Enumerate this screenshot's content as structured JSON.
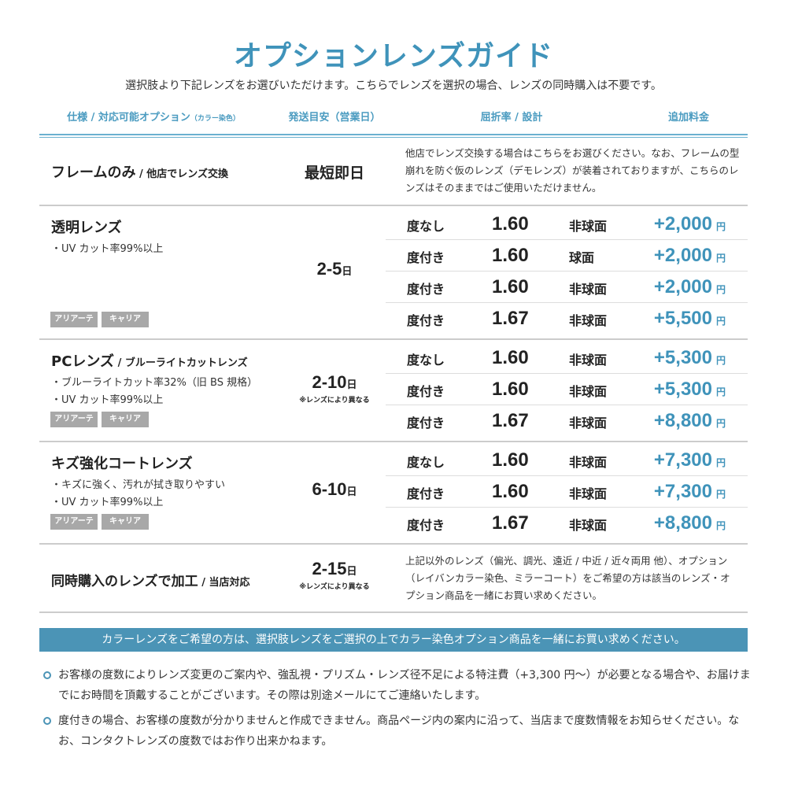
{
  "title": "オプションレンズガイド",
  "subtitle": "選択肢より下記レンズをお選びいただけます。こちらでレンズを選択の場合、レンズの同時購入は不要です。",
  "headers": {
    "spec": "仕様 / 対応可能オプション",
    "spec_small": "（カラー染色）",
    "shipping": "発送目安（営業日）",
    "index": "屈折率 / 設計",
    "price": "追加料金"
  },
  "frame_only": {
    "name": "フレームのみ",
    "sub": " / 他店でレンズ交換",
    "shipping": "最短即日",
    "desc": "他店でレンズ交換する場合はこちらをお選びください。なお、フレームの型崩れを防ぐ仮のレンズ（デモレンズ）が装着されておりますが、こちらのレンズはそのままではご使用いただけません。"
  },
  "sections": [
    {
      "name": "透明レンズ",
      "sub": "",
      "bullets": [
        "・UV カット率99%以上"
      ],
      "tags": [
        "アリアーテ",
        "キャリア"
      ],
      "days": "2-5",
      "unit": "日",
      "note": "",
      "rows": [
        {
          "type": "度なし",
          "index": "1.60",
          "design": "非球面",
          "price": "+2,000",
          "yen": "円"
        },
        {
          "type": "度付き",
          "index": "1.60",
          "design": "球面",
          "price": "+2,000",
          "yen": "円"
        },
        {
          "type": "度付き",
          "index": "1.60",
          "design": "非球面",
          "price": "+2,000",
          "yen": "円"
        },
        {
          "type": "度付き",
          "index": "1.67",
          "design": "非球面",
          "price": "+5,500",
          "yen": "円"
        }
      ]
    },
    {
      "name": "PCレンズ",
      "sub": " / ブルーライトカットレンズ",
      "bullets": [
        "・ブルーライトカット率32%（旧 BS 規格）",
        "・UV カット率99%以上"
      ],
      "tags": [
        "アリアーテ",
        "キャリア"
      ],
      "days": "2-10",
      "unit": "日",
      "note": "※レンズにより異なる",
      "rows": [
        {
          "type": "度なし",
          "index": "1.60",
          "design": "非球面",
          "price": "+5,300",
          "yen": "円"
        },
        {
          "type": "度付き",
          "index": "1.60",
          "design": "非球面",
          "price": "+5,300",
          "yen": "円"
        },
        {
          "type": "度付き",
          "index": "1.67",
          "design": "非球面",
          "price": "+8,800",
          "yen": "円"
        }
      ]
    },
    {
      "name": "キズ強化コートレンズ",
      "sub": "",
      "bullets": [
        "・キズに強く、汚れが拭き取りやすい",
        "・UV カット率99%以上"
      ],
      "tags": [
        "アリアーテ",
        "キャリア"
      ],
      "days": "6-10",
      "unit": "日",
      "note": "",
      "rows": [
        {
          "type": "度なし",
          "index": "1.60",
          "design": "非球面",
          "price": "+7,300",
          "yen": "円"
        },
        {
          "type": "度付き",
          "index": "1.60",
          "design": "非球面",
          "price": "+7,300",
          "yen": "円"
        },
        {
          "type": "度付き",
          "index": "1.67",
          "design": "非球面",
          "price": "+8,800",
          "yen": "円"
        }
      ]
    }
  ],
  "same_time": {
    "name": "同時購入のレンズで加工",
    "sub": " / 当店対応",
    "days": "2-15",
    "unit": "日",
    "note": "※レンズにより異なる",
    "desc": "上記以外のレンズ（偏光、調光、遠近 / 中近 / 近々両用 他）、オプション（レイバンカラー染色、ミラーコート）をご希望の方は該当のレンズ・オプション商品を一緒にお買い求めください。"
  },
  "banner": "カラーレンズをご希望の方は、選択肢レンズをご選択の上でカラー染色オプション商品を一緒にお買い求めください。",
  "notes": [
    "お客様の度数によりレンズ変更のご案内や、強乱視・プリズム・レンズ径不足による特注費（+3,300 円〜）が必要となる場合や、お届けまでにお時間を頂戴することがございます。その際は別途メールにてご連絡いたします。",
    "度付きの場合、お客様の度数が分かりませんと作成できません。商品ページ内の案内に沿って、当店まで度数情報をお知らせください。なお、コンタクトレンズの度数ではお作り出来かねます。"
  ],
  "colors": {
    "accent": "#3f93ba",
    "banner": "#4b94b6",
    "tag": "#a8a8a8"
  }
}
